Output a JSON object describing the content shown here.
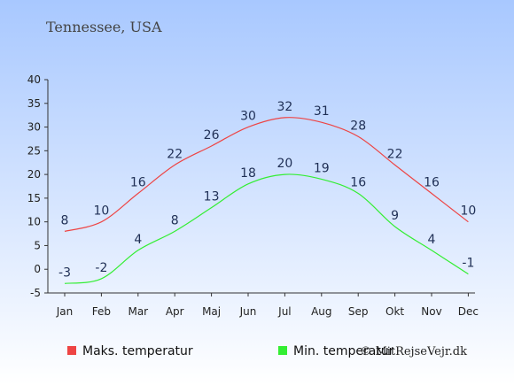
{
  "chart_data": {
    "type": "line",
    "subtitle": "Tennessee, USA",
    "categories": [
      "Jan",
      "Feb",
      "Mar",
      "Apr",
      "Maj",
      "Jun",
      "Jul",
      "Aug",
      "Sep",
      "Okt",
      "Nov",
      "Dec"
    ],
    "series": [
      {
        "name": "Maks. temperatur",
        "color": "#ee4444",
        "values": [
          8,
          10,
          16,
          22,
          26,
          30,
          32,
          31,
          28,
          22,
          16,
          10
        ]
      },
      {
        "name": "Min. temperatur",
        "color": "#33ee33",
        "values": [
          -3,
          -2,
          4,
          8,
          13,
          18,
          20,
          19,
          16,
          9,
          4,
          -1
        ]
      }
    ],
    "y_ticks": [
      "40",
      "35",
      "30",
      "25",
      "20",
      "15",
      "10",
      "5",
      "0",
      "-5"
    ],
    "ylim": [
      -5,
      40
    ],
    "grid": false,
    "legend_position": "bottom"
  },
  "credit": "© MitRejseVejr.dk",
  "colors": {
    "background_top": "#a8c8ff",
    "background_bottom": "#ffffff",
    "axis": "#333333"
  }
}
